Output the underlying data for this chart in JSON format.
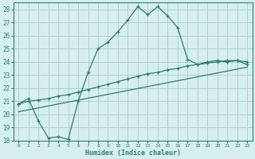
{
  "xlabel": "Humidex (Indice chaleur)",
  "ylabel": "",
  "bg_color": "#d6eeee",
  "grid_color": "#b0cfcf",
  "line_color": "#2e7d6e",
  "xlim": [
    -0.5,
    23.5
  ],
  "ylim": [
    18,
    28.5
  ],
  "xticks": [
    0,
    1,
    2,
    3,
    4,
    5,
    6,
    7,
    8,
    9,
    10,
    11,
    12,
    13,
    14,
    15,
    16,
    17,
    18,
    19,
    20,
    21,
    22,
    23
  ],
  "yticks": [
    18,
    19,
    20,
    21,
    22,
    23,
    24,
    25,
    26,
    27,
    28
  ],
  "line1_x": [
    0,
    1,
    2,
    3,
    4,
    5,
    6,
    7,
    8,
    9,
    10,
    11,
    12,
    13,
    14,
    15,
    16,
    17,
    18,
    19,
    20,
    21,
    22,
    23
  ],
  "line1_y": [
    20.8,
    21.2,
    19.5,
    18.2,
    18.3,
    18.1,
    21.0,
    23.2,
    25.0,
    25.5,
    26.3,
    27.2,
    28.2,
    27.6,
    28.2,
    27.5,
    26.6,
    24.2,
    23.8,
    24.0,
    24.1,
    24.0,
    24.1,
    23.8
  ],
  "line2_x": [
    0,
    1,
    2,
    3,
    4,
    5,
    6,
    7,
    8,
    9,
    10,
    11,
    12,
    13,
    14,
    15,
    16,
    17,
    18,
    19,
    20,
    21,
    22,
    23
  ],
  "line2_y": [
    20.8,
    21.0,
    21.1,
    21.2,
    21.4,
    21.5,
    21.7,
    21.9,
    22.1,
    22.3,
    22.5,
    22.7,
    22.9,
    23.1,
    23.2,
    23.4,
    23.5,
    23.7,
    23.8,
    23.9,
    24.0,
    24.1,
    24.1,
    24.0
  ],
  "line3_x": [
    0,
    23
  ],
  "line3_y": [
    20.2,
    23.6
  ]
}
